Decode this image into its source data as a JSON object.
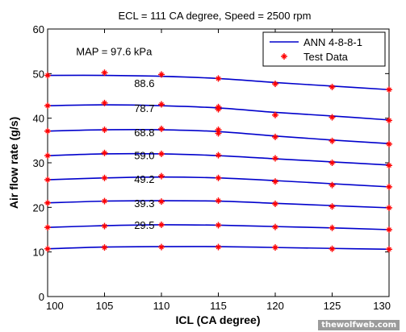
{
  "watermark": "thewolfweb.com",
  "chart_data": {
    "type": "line",
    "title": "ECL = 111 CA degree, Speed = 2500 rpm",
    "xlabel": "ICL (CA degree)",
    "ylabel": "Air flow rate (g/s)",
    "xlim": [
      100,
      130
    ],
    "ylim": [
      0,
      60
    ],
    "xticks": [
      100,
      105,
      110,
      115,
      120,
      125,
      130
    ],
    "yticks": [
      0,
      10,
      20,
      30,
      40,
      50,
      60
    ],
    "grid": false,
    "legend": {
      "placement": "top-right",
      "entries": [
        {
          "label": "ANN 4-8-8-1",
          "style": "line",
          "color": "#0000cc"
        },
        {
          "label": "Test Data",
          "style": "marker",
          "color": "#ff0000"
        }
      ]
    },
    "x": [
      100,
      105,
      110,
      115,
      120,
      125,
      130
    ],
    "ann_series": [
      {
        "map": "97.6 kPa",
        "values": [
          49.6,
          49.6,
          49.4,
          48.9,
          48.0,
          47.2,
          46.4
        ]
      },
      {
        "map": "88.6",
        "values": [
          42.8,
          43.0,
          42.8,
          42.3,
          41.3,
          40.5,
          39.6
        ]
      },
      {
        "map": "78.7",
        "values": [
          37.1,
          37.4,
          37.4,
          37.0,
          36.0,
          35.1,
          34.3
        ]
      },
      {
        "map": "68.8",
        "values": [
          31.6,
          32.0,
          32.0,
          31.6,
          30.9,
          30.2,
          29.5
        ]
      },
      {
        "map": "59.0",
        "values": [
          26.2,
          26.6,
          26.8,
          26.6,
          26.0,
          25.3,
          24.6
        ]
      },
      {
        "map": "49.2",
        "values": [
          21.0,
          21.4,
          21.5,
          21.4,
          20.9,
          20.4,
          19.9
        ]
      },
      {
        "map": "39.3",
        "values": [
          15.5,
          15.9,
          16.1,
          16.0,
          15.7,
          15.4,
          15.0
        ]
      },
      {
        "map": "29.5",
        "values": [
          10.7,
          11.1,
          11.2,
          11.2,
          11.0,
          10.8,
          10.6
        ]
      }
    ],
    "test_data": [
      [
        100,
        49.6
      ],
      [
        105,
        50.2
      ],
      [
        110,
        49.8
      ],
      [
        115,
        48.9
      ],
      [
        120,
        47.7
      ],
      [
        125,
        47.0
      ],
      [
        130,
        46.4
      ],
      [
        100,
        42.8
      ],
      [
        105,
        43.4
      ],
      [
        110,
        43.1
      ],
      [
        115,
        42.5
      ],
      [
        115,
        42.0
      ],
      [
        120,
        40.7
      ],
      [
        125,
        40.2
      ],
      [
        130,
        39.5
      ],
      [
        100,
        37.1
      ],
      [
        105,
        37.4
      ],
      [
        110,
        37.6
      ],
      [
        115,
        37.4
      ],
      [
        115,
        36.6
      ],
      [
        120,
        35.8
      ],
      [
        125,
        34.9
      ],
      [
        130,
        34.2
      ],
      [
        100,
        31.6
      ],
      [
        105,
        32.2
      ],
      [
        110,
        32.0
      ],
      [
        115,
        31.7
      ],
      [
        120,
        31.0
      ],
      [
        125,
        30.0
      ],
      [
        130,
        29.4
      ],
      [
        100,
        26.2
      ],
      [
        105,
        26.6
      ],
      [
        110,
        27.0
      ],
      [
        115,
        26.6
      ],
      [
        120,
        25.8
      ],
      [
        125,
        25.0
      ],
      [
        130,
        24.6
      ],
      [
        100,
        21.0
      ],
      [
        105,
        21.4
      ],
      [
        110,
        21.3
      ],
      [
        115,
        21.5
      ],
      [
        120,
        20.8
      ],
      [
        125,
        20.2
      ],
      [
        130,
        19.9
      ],
      [
        100,
        15.5
      ],
      [
        105,
        15.8
      ],
      [
        110,
        16.1
      ],
      [
        115,
        16.0
      ],
      [
        120,
        15.6
      ],
      [
        125,
        15.4
      ],
      [
        130,
        15.0
      ],
      [
        100,
        10.7
      ],
      [
        105,
        11.0
      ],
      [
        110,
        11.1
      ],
      [
        115,
        11.1
      ],
      [
        120,
        11.0
      ],
      [
        125,
        10.7
      ],
      [
        130,
        10.6
      ]
    ],
    "annotations": [
      "MAP = 97.6 kPa",
      "88.6",
      "78.7",
      "68.8",
      "59.0",
      "49.2",
      "39.3",
      "29.5"
    ]
  }
}
